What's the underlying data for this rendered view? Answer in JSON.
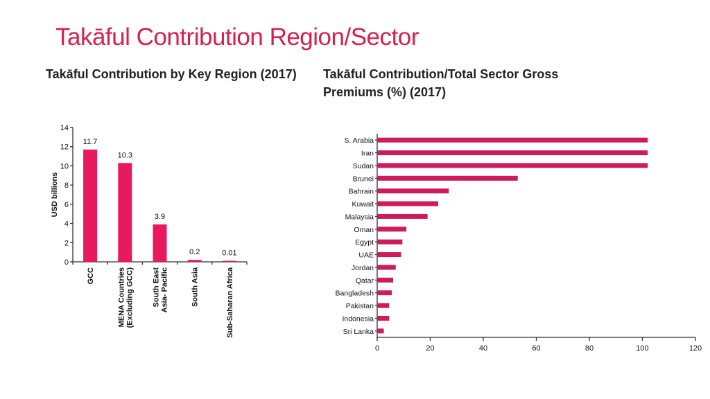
{
  "slide": {
    "title": "Takāful Contribution Region/Sector",
    "accent_color": "#d6204f"
  },
  "left_heading": "Takāful Contribution by Key Region (2017)",
  "right_heading": "Takāful Contribution/Total Sector Gross Premiums (%) (2017)",
  "chart_data": [
    {
      "type": "bar",
      "orientation": "vertical",
      "categories": [
        "GCC",
        "MENA Countries (Excluding GCC)",
        "South East Asia- Pacific",
        "South Asia",
        "Sub-Saharan Africa"
      ],
      "category_lines": [
        [
          "GCC"
        ],
        [
          "MENA Countries",
          "(Excluding GCC)"
        ],
        [
          "South East",
          "Asia- Pacific"
        ],
        [
          "South Asia"
        ],
        [
          "Sub-Saharan Africa"
        ]
      ],
      "values": [
        11.7,
        10.3,
        3.9,
        0.2,
        0.01
      ],
      "value_labels": [
        "11.7",
        "10.3",
        "3.9",
        "0.2",
        "0.01"
      ],
      "ylabel": "USD billions",
      "ylim": [
        0,
        14
      ],
      "yticks": [
        0,
        2,
        4,
        6,
        8,
        10,
        12,
        14
      ],
      "bar_color": "#e8195c",
      "grid": false
    },
    {
      "type": "bar",
      "orientation": "horizontal",
      "categories": [
        "S. Arabia",
        "Iran",
        "Sudan",
        "Brunei",
        "Bahrain",
        "Kuwait",
        "Malaysia",
        "Oman",
        "Egypt",
        "UAE",
        "Jordan",
        "Qatar",
        "Bangladesh",
        "Pakistan",
        "Indonesia",
        "Sri Lanka"
      ],
      "values": [
        102,
        102,
        102,
        53,
        27,
        23,
        19,
        11,
        9.5,
        9,
        7,
        6,
        5.5,
        4.5,
        4.5,
        2.5
      ],
      "xlim": [
        0,
        120
      ],
      "xticks": [
        0,
        20,
        40,
        60,
        80,
        100,
        120
      ],
      "bar_color": "#cc1c5c",
      "grid": false
    }
  ]
}
